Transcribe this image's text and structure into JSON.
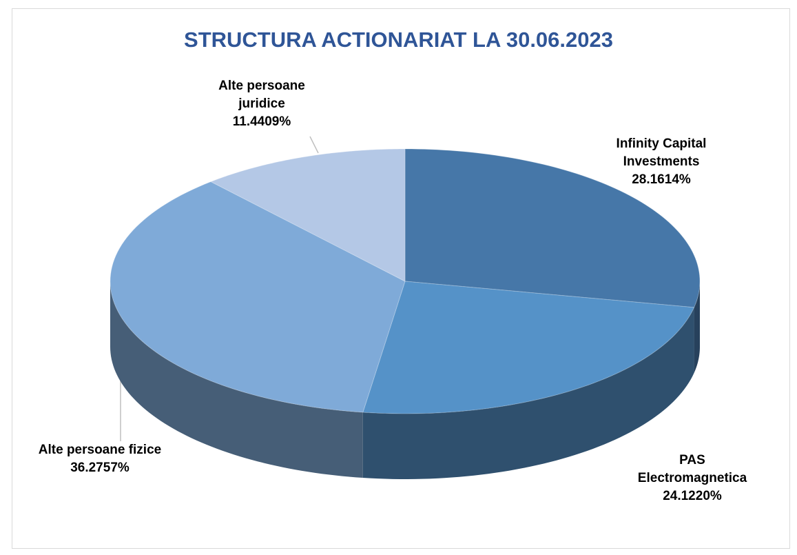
{
  "chart_data": {
    "type": "pie",
    "title": "STRUCTURA ACTIONARIAT LA 30.06.2023",
    "categories": [
      "Infinity Capital Investments",
      "PAS Electromagnetica",
      "Alte persoane fizice",
      "Alte persoane juridice"
    ],
    "values": [
      28.1614,
      24.122,
      36.2757,
      11.4409
    ],
    "value_labels": [
      "28.1614%",
      "24.1220%",
      "36.2757%",
      "11.4409%"
    ],
    "colors": [
      "#4677a8",
      "#5592c8",
      "#7faad8",
      "#b4c8e6"
    ]
  }
}
